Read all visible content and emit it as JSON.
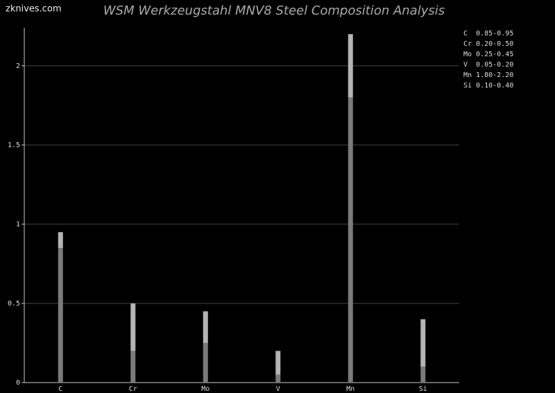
{
  "chart_data": {
    "type": "range-bar",
    "title": "WSM Werkzeugstahl MNV8 Steel Composition Analysis",
    "watermark": "zknives.com",
    "categories": [
      "C",
      "Cr",
      "Mo",
      "V",
      "Mn",
      "Si"
    ],
    "series": [
      {
        "color": "#7a7a7a",
        "values": [
          0.85,
          0.2,
          0.25,
          0.05,
          1.8,
          0.1
        ]
      },
      {
        "color": "#b4b4b4",
        "values": [
          0.95,
          0.5,
          0.45,
          0.2,
          2.2,
          0.4
        ]
      }
    ],
    "ylim": [
      0,
      2.24
    ],
    "yticks": [
      0,
      0.5,
      1,
      1.5,
      2
    ],
    "grid": true,
    "legend": [
      "C  0.85-0.95",
      "Cr 0.20-0.50",
      "Mo 0.25-0.45",
      "V  0.05-0.20",
      "Mn 1.80-2.20",
      "Si 0.10-0.40"
    ]
  }
}
